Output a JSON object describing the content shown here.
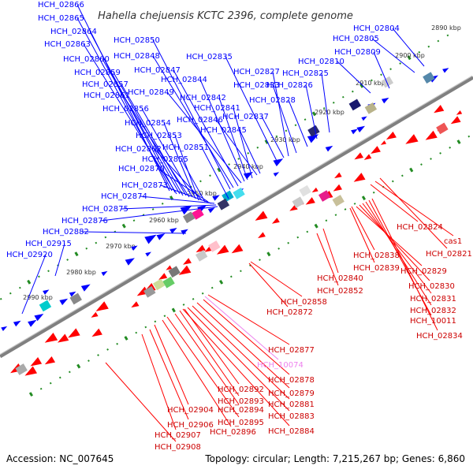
{
  "title": "Hahella chejuensis KCTC 2396, complete genome",
  "footer": {
    "accession": "Accession: NC_007645",
    "summary": "Topology: circular; Length: 7,215,267 bp; Genes: 6,860"
  },
  "colors": {
    "forward_gene": "#0000ff",
    "reverse_gene": "#ff0000",
    "highlight_gene": "#ee82ee",
    "backbone": "#808080",
    "tick_dot": "#228b22"
  },
  "ticks": [
    "2890 kbp",
    "2900 kbp",
    "2910 kbp",
    "2920 kbp",
    "2930 kbp",
    "2940 kbp",
    "2950 kbp",
    "2960 kbp",
    "2970 kbp",
    "2980 kbp",
    "2990 kbp"
  ],
  "forward_labels": [
    "HCH_02866",
    "HCH_02865",
    "HCH_02864",
    "HCH_02863",
    "HCH_02860",
    "HCH_02859",
    "HCH_02857",
    "HCH_02861",
    "HCH_02856",
    "HCH_02854",
    "HCH_02853",
    "HCH_02862",
    "HCH_02855",
    "HCH_02870",
    "HCH_02873",
    "HCH_02874",
    "HCH_02875",
    "HCH_02876",
    "HCH_02882",
    "HCH_02915",
    "HCH_02920",
    "HCH_02850",
    "HCH_02848",
    "HCH_02847",
    "HCH_02849",
    "HCH_02844",
    "HCH_02842",
    "HCH_02841",
    "HCH_02846",
    "HCH_02845",
    "HCH_02851",
    "HCH_02835",
    "HCH_02827",
    "HCH_02833",
    "HCH_02828",
    "HCH_02837",
    "HCH_02826",
    "HCH_02825",
    "HCH_02810",
    "HCH_02809",
    "HCH_02805",
    "HCH_02804"
  ],
  "reverse_labels": [
    "HCH_02824",
    "cas1",
    "HCH_02821",
    "HCH_02838",
    "HCH_02839",
    "HCH_02840",
    "HCH_02829",
    "HCH_02830",
    "HCH_02852",
    "HCH_02831",
    "HCH_02832",
    "HCH_10011",
    "HCH_02834",
    "HCH_02858",
    "HCH_02872",
    "HCH_02877",
    "HCH_10074",
    "HCH_02878",
    "HCH_02879",
    "HCH_02892",
    "HCH_02881",
    "HCH_02893",
    "HCH_02894",
    "HCH_02904",
    "HCH_02883",
    "HCH_02895",
    "HCH_02906",
    "HCH_02896",
    "HCH_02884",
    "HCH_02907",
    "HCH_02908"
  ],
  "highlight_labels": [
    "HCH_10074"
  ]
}
